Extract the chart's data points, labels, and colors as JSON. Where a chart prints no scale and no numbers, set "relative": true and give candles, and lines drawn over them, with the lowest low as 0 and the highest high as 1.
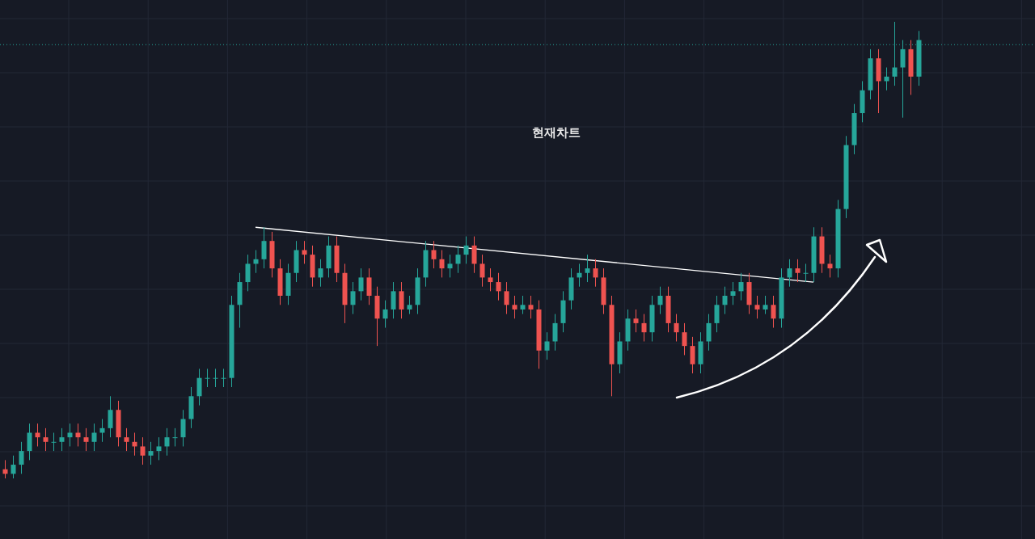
{
  "chart_data": {
    "type": "candlestick",
    "title": "현재차트",
    "relative": true,
    "grid": true,
    "categories": [
      null,
      null,
      null,
      null,
      null,
      null,
      null,
      null,
      null,
      null,
      null,
      null,
      null,
      null,
      null,
      null,
      null,
      null,
      null,
      null,
      null,
      null,
      null,
      null,
      null,
      null,
      null,
      null,
      null,
      null,
      null,
      null,
      null,
      null,
      null,
      null,
      null,
      null,
      null,
      null,
      null,
      null,
      null,
      null,
      null,
      null,
      null,
      null,
      null,
      null,
      null,
      null,
      null,
      null,
      null,
      null,
      null,
      null,
      null,
      null,
      null,
      null,
      null,
      null,
      null,
      null,
      null,
      null,
      null,
      null,
      null,
      null,
      null,
      null,
      null,
      null,
      null,
      null,
      null,
      null,
      null,
      null,
      null,
      null,
      null,
      null,
      null,
      null,
      null,
      null,
      null,
      null,
      null,
      null,
      null,
      null,
      null,
      null,
      null,
      null,
      null,
      null,
      null,
      null,
      null,
      null,
      null,
      null,
      null,
      null,
      null,
      null,
      null,
      null
    ],
    "ohlc": [
      [
        0.02,
        0.04,
        0,
        0.01
      ],
      [
        0.01,
        0.05,
        0,
        0.03
      ],
      [
        0.03,
        0.08,
        0.01,
        0.06
      ],
      [
        0.06,
        0.12,
        0.04,
        0.1
      ],
      [
        0.1,
        0.12,
        0.07,
        0.09
      ],
      [
        0.09,
        0.11,
        0.06,
        0.08
      ],
      [
        0.08,
        0.1,
        0.06,
        0.08
      ],
      [
        0.08,
        0.11,
        0.06,
        0.09
      ],
      [
        0.09,
        0.12,
        0.07,
        0.1
      ],
      [
        0.1,
        0.12,
        0.07,
        0.09
      ],
      [
        0.09,
        0.11,
        0.06,
        0.08
      ],
      [
        0.08,
        0.12,
        0.06,
        0.1
      ],
      [
        0.1,
        0.13,
        0.08,
        0.11
      ],
      [
        0.11,
        0.18,
        0.09,
        0.15
      ],
      [
        0.15,
        0.17,
        0.07,
        0.09
      ],
      [
        0.09,
        0.11,
        0.06,
        0.08
      ],
      [
        0.08,
        0.1,
        0.05,
        0.07
      ],
      [
        0.07,
        0.09,
        0.03,
        0.05
      ],
      [
        0.05,
        0.08,
        0.03,
        0.06
      ],
      [
        0.06,
        0.09,
        0.04,
        0.07
      ],
      [
        0.07,
        0.11,
        0.05,
        0.09
      ],
      [
        0.09,
        0.11,
        0.07,
        0.09
      ],
      [
        0.09,
        0.15,
        0.07,
        0.13
      ],
      [
        0.13,
        0.2,
        0.11,
        0.18
      ],
      [
        0.18,
        0.24,
        0.16,
        0.22
      ],
      [
        0.22,
        0.24,
        0.2,
        0.22
      ],
      [
        0.22,
        0.24,
        0.2,
        0.22
      ],
      [
        0.22,
        0.24,
        0.2,
        0.22
      ],
      [
        0.22,
        0.4,
        0.2,
        0.38
      ],
      [
        0.38,
        0.45,
        0.33,
        0.43
      ],
      [
        0.43,
        0.49,
        0.41,
        0.47
      ],
      [
        0.47,
        0.5,
        0.45,
        0.48
      ],
      [
        0.48,
        0.55,
        0.46,
        0.52
      ],
      [
        0.52,
        0.54,
        0.44,
        0.46
      ],
      [
        0.46,
        0.48,
        0.38,
        0.4
      ],
      [
        0.4,
        0.47,
        0.38,
        0.45
      ],
      [
        0.45,
        0.52,
        0.43,
        0.5
      ],
      [
        0.5,
        0.52,
        0.47,
        0.49
      ],
      [
        0.49,
        0.51,
        0.42,
        0.44
      ],
      [
        0.44,
        0.48,
        0.42,
        0.46
      ],
      [
        0.46,
        0.53,
        0.44,
        0.51
      ],
      [
        0.51,
        0.53,
        0.43,
        0.45
      ],
      [
        0.45,
        0.47,
        0.34,
        0.38
      ],
      [
        0.38,
        0.43,
        0.36,
        0.41
      ],
      [
        0.41,
        0.46,
        0.39,
        0.44
      ],
      [
        0.44,
        0.46,
        0.38,
        0.4
      ],
      [
        0.4,
        0.42,
        0.29,
        0.35
      ],
      [
        0.35,
        0.39,
        0.33,
        0.37
      ],
      [
        0.37,
        0.43,
        0.35,
        0.41
      ],
      [
        0.41,
        0.43,
        0.35,
        0.37
      ],
      [
        0.37,
        0.4,
        0.36,
        0.38
      ],
      [
        0.38,
        0.46,
        0.36,
        0.44
      ],
      [
        0.44,
        0.52,
        0.42,
        0.5
      ],
      [
        0.5,
        0.52,
        0.46,
        0.48
      ],
      [
        0.48,
        0.5,
        0.44,
        0.46
      ],
      [
        0.46,
        0.49,
        0.44,
        0.47
      ],
      [
        0.47,
        0.51,
        0.45,
        0.49
      ],
      [
        0.49,
        0.53,
        0.47,
        0.51
      ],
      [
        0.51,
        0.53,
        0.45,
        0.47
      ],
      [
        0.47,
        0.49,
        0.42,
        0.44
      ],
      [
        0.44,
        0.46,
        0.41,
        0.43
      ],
      [
        0.43,
        0.45,
        0.39,
        0.41
      ],
      [
        0.41,
        0.43,
        0.36,
        0.38
      ],
      [
        0.38,
        0.4,
        0.35,
        0.37
      ],
      [
        0.37,
        0.4,
        0.36,
        0.38
      ],
      [
        0.38,
        0.4,
        0.35,
        0.37
      ],
      [
        0.37,
        0.39,
        0.24,
        0.28
      ],
      [
        0.28,
        0.32,
        0.26,
        0.3
      ],
      [
        0.3,
        0.36,
        0.28,
        0.34
      ],
      [
        0.34,
        0.41,
        0.32,
        0.39
      ],
      [
        0.39,
        0.46,
        0.37,
        0.44
      ],
      [
        0.44,
        0.47,
        0.42,
        0.45
      ],
      [
        0.45,
        0.49,
        0.43,
        0.46
      ],
      [
        0.46,
        0.48,
        0.42,
        0.44
      ],
      [
        0.44,
        0.46,
        0.36,
        0.38
      ],
      [
        0.38,
        0.4,
        0.18,
        0.25
      ],
      [
        0.25,
        0.32,
        0.23,
        0.3
      ],
      [
        0.3,
        0.37,
        0.28,
        0.35
      ],
      [
        0.35,
        0.37,
        0.32,
        0.34
      ],
      [
        0.34,
        0.36,
        0.3,
        0.32
      ],
      [
        0.32,
        0.4,
        0.3,
        0.38
      ],
      [
        0.38,
        0.42,
        0.36,
        0.4
      ],
      [
        0.4,
        0.42,
        0.32,
        0.34
      ],
      [
        0.34,
        0.36,
        0.3,
        0.32
      ],
      [
        0.32,
        0.34,
        0.27,
        0.29
      ],
      [
        0.29,
        0.31,
        0.23,
        0.25
      ],
      [
        0.25,
        0.32,
        0.23,
        0.3
      ],
      [
        0.3,
        0.36,
        0.28,
        0.34
      ],
      [
        0.34,
        0.4,
        0.32,
        0.38
      ],
      [
        0.38,
        0.42,
        0.36,
        0.4
      ],
      [
        0.4,
        0.43,
        0.38,
        0.41
      ],
      [
        0.41,
        0.45,
        0.39,
        0.43
      ],
      [
        0.43,
        0.45,
        0.36,
        0.38
      ],
      [
        0.38,
        0.4,
        0.35,
        0.37
      ],
      [
        0.37,
        0.4,
        0.36,
        0.38
      ],
      [
        0.38,
        0.4,
        0.33,
        0.35
      ],
      [
        0.35,
        0.46,
        0.33,
        0.44
      ],
      [
        0.44,
        0.48,
        0.42,
        0.46
      ],
      [
        0.46,
        0.48,
        0.43,
        0.45
      ],
      [
        0.45,
        0.47,
        0.43,
        0.45
      ],
      [
        0.45,
        0.55,
        0.43,
        0.53
      ],
      [
        0.53,
        0.55,
        0.45,
        0.47
      ],
      [
        0.47,
        0.49,
        0.44,
        0.46
      ],
      [
        0.46,
        0.61,
        0.44,
        0.59
      ],
      [
        0.59,
        0.75,
        0.57,
        0.73
      ],
      [
        0.73,
        0.82,
        0.71,
        0.8
      ],
      [
        0.8,
        0.87,
        0.78,
        0.85
      ],
      [
        0.85,
        0.94,
        0.83,
        0.92
      ],
      [
        0.92,
        0.94,
        0.8,
        0.87
      ],
      [
        0.87,
        0.9,
        0.85,
        0.88
      ],
      [
        0.88,
        1.0,
        0.86,
        0.9
      ],
      [
        0.9,
        0.96,
        0.79,
        0.94
      ],
      [
        0.94,
        0.96,
        0.84,
        0.88
      ],
      [
        0.88,
        0.98,
        0.86,
        0.96
      ]
    ],
    "series": [
      {
        "type": "line",
        "color": "#ffffff",
        "values": [
          null,
          null,
          null,
          null,
          null,
          null,
          null,
          null,
          null,
          null,
          null,
          null,
          null,
          null,
          null,
          null,
          null,
          null,
          null,
          null,
          null,
          null,
          null,
          null,
          null,
          null,
          null,
          null,
          null,
          null,
          null,
          0.55,
          null,
          null,
          null,
          null,
          null,
          null,
          null,
          null,
          null,
          null,
          null,
          null,
          null,
          null,
          null,
          null,
          null,
          null,
          null,
          null,
          null,
          null,
          null,
          null,
          null,
          null,
          null,
          null,
          null,
          null,
          null,
          null,
          null,
          null,
          null,
          null,
          null,
          null,
          null,
          null,
          null,
          null,
          null,
          null,
          null,
          null,
          null,
          null,
          null,
          null,
          null,
          null,
          null,
          null,
          null,
          null,
          null,
          null,
          null,
          null,
          null,
          null,
          null,
          null,
          null,
          null,
          null,
          null,
          0.43,
          null,
          null,
          null,
          null,
          null,
          null,
          null,
          null,
          null,
          null,
          null,
          null,
          null
        ]
      }
    ],
    "ref_lines": [
      {
        "axis": "y",
        "value": 0.95,
        "color": "#26a69a",
        "line_style": "dotted"
      }
    ]
  }
}
